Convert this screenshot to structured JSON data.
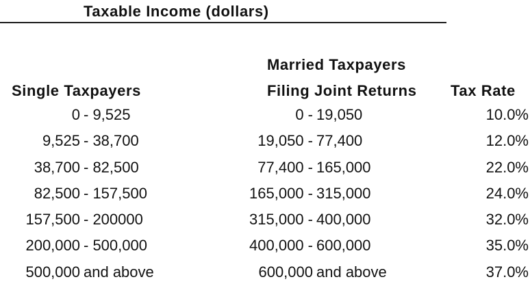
{
  "title": "Taxable Income (dollars)",
  "headers": {
    "married_line1": "Married Taxpayers",
    "single": "Single Taxpayers",
    "married_line2": "Filing Joint Returns",
    "rate": "Tax Rate"
  },
  "rows": [
    {
      "single_lo": "0",
      "single_hi": "- 9,525",
      "married_lo": "0 -",
      "married_hi": " 19,050",
      "rate": "10.0%"
    },
    {
      "single_lo": "9,525",
      "single_hi": "- 38,700",
      "married_lo": "19,050 -",
      "married_hi": " 77,400",
      "rate": "12.0%"
    },
    {
      "single_lo": "38,700",
      "single_hi": "- 82,500",
      "married_lo": "77,400 -",
      "married_hi": " 165,000",
      "rate": "22.0%"
    },
    {
      "single_lo": "82,500",
      "single_hi": "- 157,500",
      "married_lo": "165,000 -",
      "married_hi": " 315,000",
      "rate": "24.0%"
    },
    {
      "single_lo": "157,500",
      "single_hi": "- 200000",
      "married_lo": "315,000 -",
      "married_hi": " 400,000",
      "rate": "32.0%"
    },
    {
      "single_lo": "200,000",
      "single_hi": "- 500,000",
      "married_lo": "400,000 -",
      "married_hi": " 600,000",
      "rate": "35.0%"
    },
    {
      "single_lo": "500,000",
      "single_hi": "and above",
      "married_lo": "600,000",
      "married_hi": " and above",
      "rate": "37.0%"
    }
  ]
}
